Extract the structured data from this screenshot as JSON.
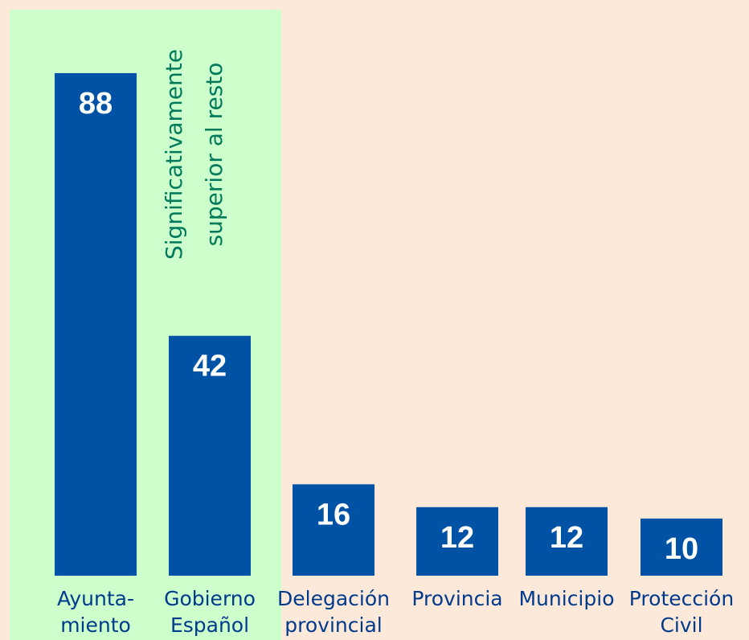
{
  "chart_data": {
    "type": "bar",
    "categories": [
      [
        "Ayunta-",
        "miento"
      ],
      [
        "Gobierno",
        "Español"
      ],
      [
        "Delegación",
        "provincial"
      ],
      [
        "Provincia"
      ],
      [
        "Municipio"
      ],
      [
        "Protección",
        "Civil"
      ]
    ],
    "values": [
      88,
      42,
      16,
      12,
      12,
      10
    ],
    "color": "#0052a5",
    "annotation": [
      "Significativamente",
      "superior al resto"
    ]
  }
}
